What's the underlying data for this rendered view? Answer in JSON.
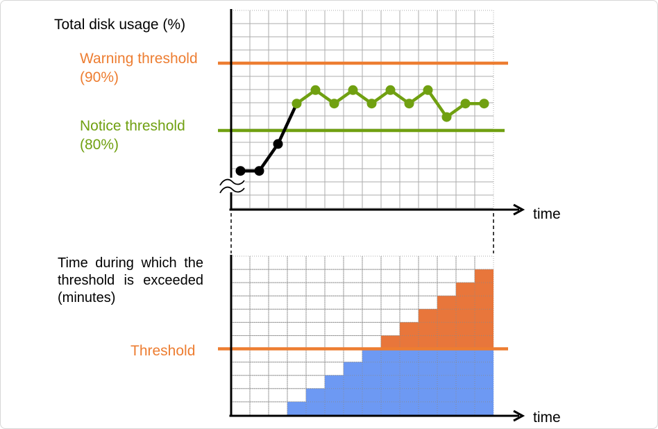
{
  "labels": {
    "top_title": "Total disk usage (%)",
    "warning_line1": "Warning threshold",
    "warning_line2": "(90%)",
    "notice_line1": "Notice threshold",
    "notice_line2": "(80%)",
    "top_time": "time",
    "bottom_title": "Time during which the threshold is exceeded (minutes)",
    "threshold": "Threshold",
    "bottom_time": "time"
  },
  "colors": {
    "orange": "#ED7D31",
    "bar_orange": "#E8763B",
    "green": "#70A011",
    "blue": "#6D99F3",
    "black": "#000000",
    "grid": "#ABABAB",
    "axis": "#000000",
    "page_border": "#D6D6D6",
    "background": "#FFFFFF"
  },
  "chart_data": [
    {
      "type": "line",
      "title": "Total disk usage (%)",
      "xlabel": "time",
      "ylabel": "Total disk usage (%)",
      "y_axis_break": true,
      "grid": {
        "columns": 14,
        "rows": 15,
        "grid_on": true
      },
      "thresholds": [
        {
          "label": "Warning threshold",
          "value_percent": 90,
          "color_key": "orange"
        },
        {
          "label": "Notice threshold",
          "value_percent": 80,
          "color_key": "green"
        }
      ],
      "series": [
        {
          "name": "total-disk-usage",
          "values_percent": [
            74,
            74,
            78,
            84,
            86,
            84,
            86,
            84,
            86,
            84,
            86,
            82,
            84,
            84
          ],
          "point_colors": [
            "black",
            "black",
            "black",
            "green",
            "green",
            "green",
            "green",
            "green",
            "green",
            "green",
            "green",
            "green",
            "green",
            "green"
          ]
        }
      ]
    },
    {
      "type": "bar",
      "title": "Time during which the threshold is exceeded (minutes)",
      "xlabel": "time",
      "stacked": true,
      "grid": {
        "columns": 14,
        "rows": 12,
        "grid_on": true
      },
      "threshold": {
        "label": "Threshold",
        "value_grid_cells": 5,
        "color_key": "orange"
      },
      "series": [
        {
          "name": "time-exceeded-below-threshold",
          "color_key": "blue",
          "values_grid_cells": [
            0,
            0,
            0,
            1,
            2,
            3,
            4,
            5,
            5,
            5,
            5,
            5,
            5,
            5
          ]
        },
        {
          "name": "time-exceeded-above-threshold",
          "color_key": "bar_orange",
          "values_grid_cells": [
            0,
            0,
            0,
            0,
            0,
            0,
            0,
            0,
            1,
            2,
            3,
            4,
            5,
            6
          ]
        }
      ]
    }
  ]
}
